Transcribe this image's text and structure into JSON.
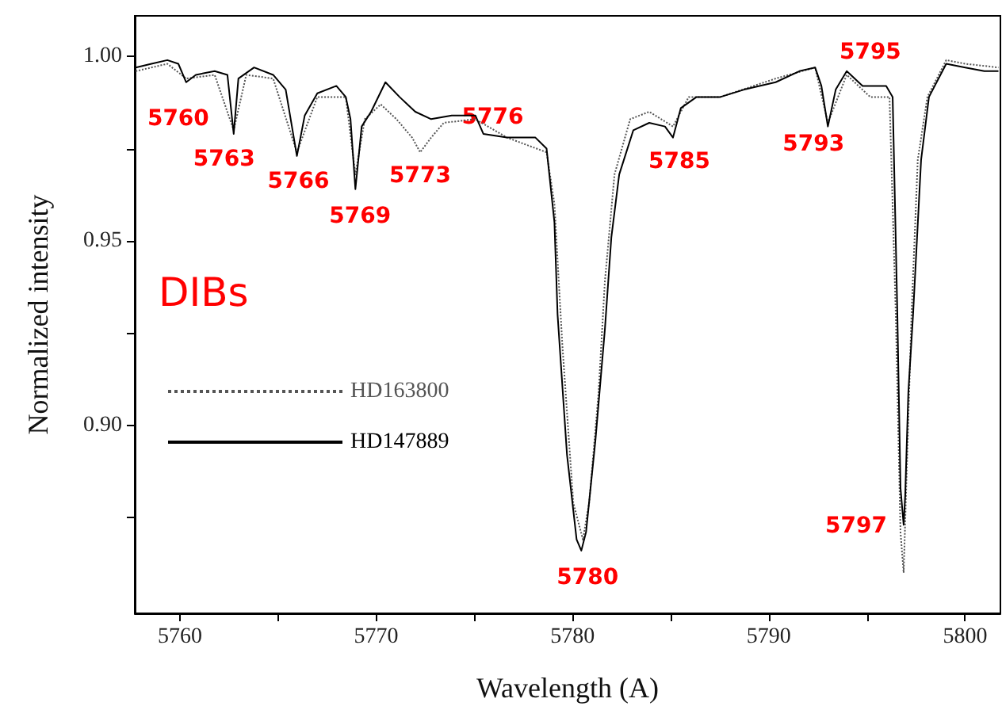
{
  "chart_data": {
    "type": "line",
    "xlabel": "Wavelength (A)",
    "ylabel": "Normalized intensity",
    "xlim": [
      5757.7,
      5801.8
    ],
    "ylim": [
      0.849,
      1.011
    ],
    "xticks": [
      5760,
      {
        "value": 5765,
        "label": null
      },
      5770,
      {
        "value": 5775,
        "label": null
      },
      5780,
      {
        "value": 5785,
        "label": null
      },
      5790,
      {
        "value": 5795,
        "label": null
      },
      5800
    ],
    "yticks": [
      {
        "value": 0.875,
        "label": null
      },
      {
        "value": 0.9,
        "label": "0.90"
      },
      {
        "value": 0.925,
        "label": null
      },
      {
        "value": 0.95,
        "label": "0.95"
      },
      {
        "value": 0.975,
        "label": null
      },
      {
        "value": 1.0,
        "label": "1.00"
      }
    ],
    "grid": false,
    "legend": "left",
    "marker": "none",
    "series": [
      {
        "name": "HD163800",
        "color": "#555555",
        "line_style": "dotted",
        "x": [
          5757.75,
          5759.36,
          5760.32,
          5761.77,
          5762.74,
          5763.38,
          5764.75,
          5765.96,
          5767.0,
          5768.45,
          5768.94,
          5769.42,
          5770.23,
          5771.03,
          5771.83,
          5772.24,
          5772.8,
          5773.44,
          5775.05,
          5776.66,
          5778.68,
          5779.08,
          5779.48,
          5780.04,
          5780.53,
          5780.85,
          5781.33,
          5781.65,
          5782.14,
          5782.94,
          5783.91,
          5785.12,
          5785.92,
          5787.53,
          5790.35,
          5792.36,
          5793.01,
          5793.97,
          5795.17,
          5796.15,
          5796.47,
          5796.71,
          5796.87,
          5797.03,
          5797.27,
          5797.59,
          5798.08,
          5799.04,
          5800.01,
          5801.7
        ],
        "values": [
          0.996,
          0.998,
          0.994,
          0.995,
          0.98,
          0.995,
          0.994,
          0.974,
          0.989,
          0.989,
          0.968,
          0.983,
          0.987,
          0.983,
          0.978,
          0.974,
          0.978,
          0.982,
          0.983,
          0.978,
          0.974,
          0.96,
          0.922,
          0.879,
          0.869,
          0.879,
          0.909,
          0.939,
          0.968,
          0.983,
          0.985,
          0.981,
          0.989,
          0.989,
          0.994,
          0.997,
          0.982,
          0.995,
          0.989,
          0.989,
          0.93,
          0.871,
          0.86,
          0.888,
          0.93,
          0.972,
          0.989,
          0.999,
          0.998,
          0.997
        ]
      },
      {
        "name": "HD147889",
        "color": "#000000",
        "line_style": "solid",
        "x": [
          5757.75,
          5758.55,
          5759.36,
          5759.92,
          5760.32,
          5760.81,
          5761.77,
          5762.42,
          5762.74,
          5762.98,
          5763.78,
          5764.75,
          5765.39,
          5765.96,
          5766.36,
          5767.0,
          5767.97,
          5768.45,
          5768.69,
          5768.94,
          5769.26,
          5769.74,
          5770.47,
          5771.19,
          5771.99,
          5772.8,
          5773.85,
          5775.05,
          5775.46,
          5776.66,
          5778.11,
          5778.68,
          5779.08,
          5779.24,
          5779.72,
          5780.21,
          5780.45,
          5780.69,
          5781.17,
          5781.65,
          5781.98,
          5782.38,
          5783.1,
          5783.91,
          5784.71,
          5785.12,
          5785.52,
          5786.32,
          5787.53,
          5788.74,
          5790.35,
          5791.56,
          5792.36,
          5792.68,
          5793.01,
          5793.41,
          5793.97,
          5794.78,
          5795.98,
          5796.31,
          5796.55,
          5796.71,
          5796.87,
          5796.95,
          5797.11,
          5797.35,
          5797.76,
          5798.16,
          5799.04,
          5800.01,
          5800.98,
          5801.7
        ],
        "values": [
          0.997,
          0.998,
          0.999,
          0.998,
          0.993,
          0.995,
          0.996,
          0.995,
          0.979,
          0.994,
          0.997,
          0.995,
          0.991,
          0.973,
          0.984,
          0.99,
          0.992,
          0.989,
          0.983,
          0.964,
          0.981,
          0.985,
          0.993,
          0.989,
          0.985,
          0.983,
          0.984,
          0.984,
          0.979,
          0.978,
          0.978,
          0.975,
          0.955,
          0.93,
          0.892,
          0.869,
          0.866,
          0.871,
          0.896,
          0.926,
          0.951,
          0.968,
          0.98,
          0.982,
          0.981,
          0.978,
          0.986,
          0.989,
          0.989,
          0.991,
          0.993,
          0.996,
          0.997,
          0.992,
          0.981,
          0.991,
          0.996,
          0.992,
          0.992,
          0.989,
          0.93,
          0.883,
          0.873,
          0.881,
          0.909,
          0.93,
          0.972,
          0.989,
          0.998,
          0.997,
          0.996,
          0.996
        ]
      }
    ],
    "annotations": [
      "DIBs",
      {
        "text": "5760",
        "x": 5760.32,
        "y": 0.993
      },
      {
        "text": "5763",
        "x": 5762.74,
        "y": 0.979
      },
      {
        "text": "5766",
        "x": 5765.96,
        "y": 0.973
      },
      {
        "text": "5769",
        "x": 5768.94,
        "y": 0.964
      },
      {
        "text": "5773",
        "x": 5772.24,
        "y": 0.974
      },
      {
        "text": "5776",
        "x": 5776.66,
        "y": 0.978
      },
      {
        "text": "5780",
        "x": 5780.45,
        "y": 0.866
      },
      {
        "text": "5785",
        "x": 5785.12,
        "y": 0.978
      },
      {
        "text": "5793",
        "x": 5793.01,
        "y": 0.981
      },
      {
        "text": "5795",
        "x": 5795.98,
        "y": 0.992
      },
      {
        "text": "5797",
        "x": 5796.87,
        "y": 0.873
      }
    ]
  }
}
